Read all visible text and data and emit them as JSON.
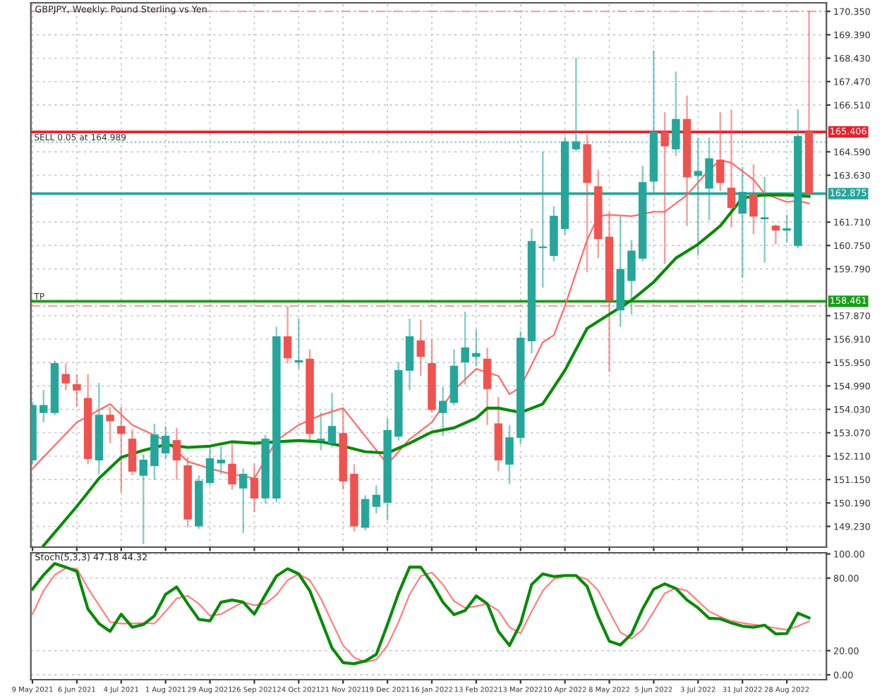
{
  "chart_data": [
    {
      "type": "candlestick",
      "title": "GBPJPY, Weekly: Pound Sterling vs Yen",
      "x": [
        "2021-05-09",
        "2021-05-16",
        "2021-05-23",
        "2021-05-30",
        "2021-06-06",
        "2021-06-13",
        "2021-06-20",
        "2021-06-27",
        "2021-07-04",
        "2021-07-11",
        "2021-07-18",
        "2021-07-25",
        "2021-08-01",
        "2021-08-08",
        "2021-08-15",
        "2021-08-22",
        "2021-08-29",
        "2021-09-05",
        "2021-09-12",
        "2021-09-19",
        "2021-09-26",
        "2021-10-03",
        "2021-10-10",
        "2021-10-17",
        "2021-10-24",
        "2021-10-31",
        "2021-11-07",
        "2021-11-14",
        "2021-11-21",
        "2021-11-28",
        "2021-12-05",
        "2021-12-12",
        "2021-12-19",
        "2021-12-26",
        "2022-01-02",
        "2022-01-09",
        "2022-01-16",
        "2022-01-23",
        "2022-01-30",
        "2022-02-06",
        "2022-02-13",
        "2022-02-20",
        "2022-02-27",
        "2022-03-06",
        "2022-03-13",
        "2022-03-20",
        "2022-03-27",
        "2022-04-03",
        "2022-04-10",
        "2022-04-17",
        "2022-04-24",
        "2022-05-01",
        "2022-05-08",
        "2022-05-15",
        "2022-05-22",
        "2022-05-29",
        "2022-06-05",
        "2022-06-12",
        "2022-06-19",
        "2022-06-26",
        "2022-07-03",
        "2022-07-10",
        "2022-07-17",
        "2022-07-24",
        "2022-07-31",
        "2022-08-07",
        "2022-08-14",
        "2022-08-21",
        "2022-08-28",
        "2022-09-04",
        "2022-09-11"
      ],
      "ohlc": [
        [
          151.95,
          154.36,
          151.78,
          154.19
        ],
        [
          153.9,
          154.82,
          153.5,
          154.19
        ],
        [
          153.9,
          156.03,
          153.79,
          155.91
        ],
        [
          155.46,
          155.91,
          154.82,
          155.11
        ],
        [
          155.05,
          155.46,
          154.13,
          154.82
        ],
        [
          154.48,
          155.46,
          151.78,
          152.01
        ],
        [
          151.95,
          155.11,
          151.37,
          153.79
        ],
        [
          153.79,
          154.13,
          152.64,
          153.56
        ],
        [
          153.33,
          154.13,
          150.63,
          153.04
        ],
        [
          152.81,
          153.21,
          151.32,
          151.49
        ],
        [
          151.32,
          152.18,
          148.5,
          151.95
        ],
        [
          151.72,
          153.44,
          151.14,
          152.98
        ],
        [
          152.24,
          153.33,
          152.0,
          152.93
        ],
        [
          152.75,
          153.27,
          151.14,
          151.95
        ],
        [
          151.72,
          152.06,
          149.19,
          149.53
        ],
        [
          149.25,
          151.32,
          149.13,
          151.09
        ],
        [
          151.03,
          152.47,
          150.91,
          152.01
        ],
        [
          151.83,
          152.52,
          151.37,
          151.95
        ],
        [
          151.78,
          152.64,
          150.74,
          150.97
        ],
        [
          150.8,
          151.6,
          148.96,
          151.37
        ],
        [
          151.2,
          151.78,
          149.82,
          150.39
        ],
        [
          150.39,
          152.98,
          150.16,
          152.81
        ],
        [
          150.39,
          157.41,
          150.22,
          157.01
        ],
        [
          157.01,
          158.27,
          155.91,
          156.14
        ],
        [
          155.97,
          157.75,
          155.69,
          156.03
        ],
        [
          156.09,
          156.49,
          152.75,
          153.04
        ],
        [
          152.75,
          153.9,
          152.35,
          152.81
        ],
        [
          152.64,
          154.71,
          152.47,
          153.33
        ],
        [
          153.04,
          154.08,
          150.74,
          151.09
        ],
        [
          151.37,
          151.78,
          149.02,
          149.25
        ],
        [
          149.19,
          150.51,
          149.07,
          150.34
        ],
        [
          150.05,
          150.91,
          149.76,
          150.51
        ],
        [
          150.22,
          153.67,
          149.48,
          153.16
        ],
        [
          152.93,
          155.97,
          152.75,
          155.63
        ],
        [
          155.63,
          157.75,
          154.82,
          157.01
        ],
        [
          156.84,
          157.7,
          155.4,
          156.2
        ],
        [
          155.91,
          156.89,
          153.9,
          154.02
        ],
        [
          153.9,
          154.94,
          152.93,
          154.36
        ],
        [
          154.31,
          156.49,
          154.19,
          155.8
        ],
        [
          155.97,
          158.04,
          155.05,
          156.55
        ],
        [
          156.2,
          157.3,
          155.8,
          156.32
        ],
        [
          156.09,
          156.55,
          153.39,
          154.88
        ],
        [
          153.44,
          154.54,
          151.49,
          151.95
        ],
        [
          151.78,
          153.39,
          150.97,
          152.87
        ],
        [
          152.87,
          157.24,
          152.6,
          156.95
        ],
        [
          156.84,
          161.44,
          156.32,
          160.92
        ],
        [
          160.66,
          164.6,
          159.02,
          160.69
        ],
        [
          160.34,
          162.36,
          160.1,
          161.95
        ],
        [
          161.44,
          165.2,
          161.2,
          165.0
        ],
        [
          164.71,
          168.45,
          164.6,
          165.0
        ],
        [
          164.89,
          165.29,
          159.65,
          163.33
        ],
        [
          163.16,
          163.85,
          160.23,
          161.03
        ],
        [
          161.09,
          162.13,
          155.57,
          158.5
        ],
        [
          158.1,
          161.95,
          157.41,
          159.77
        ],
        [
          159.31,
          160.98,
          157.93,
          160.52
        ],
        [
          160.23,
          164.02,
          160.1,
          163.33
        ],
        [
          163.39,
          168.74,
          162.87,
          165.4
        ],
        [
          165.4,
          166.21,
          160.0,
          164.83
        ],
        [
          164.71,
          167.88,
          164.43,
          165.92
        ],
        [
          165.92,
          166.9,
          161.55,
          163.56
        ],
        [
          163.62,
          165.17,
          160.34,
          163.79
        ],
        [
          163.1,
          165.17,
          161.78,
          164.31
        ],
        [
          164.25,
          166.21,
          162.99,
          163.33
        ],
        [
          163.1,
          166.33,
          161.49,
          162.3
        ],
        [
          162.07,
          163.97,
          159.42,
          162.93
        ],
        [
          162.82,
          164.08,
          161.21,
          161.95
        ],
        [
          161.84,
          163.56,
          160.05,
          161.89
        ],
        [
          161.55,
          161.61,
          160.8,
          161.38
        ],
        [
          161.38,
          162.01,
          160.86,
          161.44
        ],
        [
          160.75,
          166.33,
          160.63,
          165.23
        ],
        [
          165.4,
          170.35,
          162.85,
          162.88
        ]
      ],
      "colors": [
        "#26a69a",
        "#26a69a",
        "#26a69a",
        "#ef5350",
        "#ef5350",
        "#ef5350",
        "#26a69a",
        "#ef5350",
        "#ef5350",
        "#ef5350",
        "#26a69a",
        "#26a69a",
        "#26a69a",
        "#ef5350",
        "#ef5350",
        "#26a69a",
        "#26a69a",
        "#26a69a",
        "#ef5350",
        "#26a69a",
        "#ef5350",
        "#26a69a",
        "#26a69a",
        "#ef5350",
        "#26a69a",
        "#ef5350",
        "#26a69a",
        "#26a69a",
        "#ef5350",
        "#ef5350",
        "#26a69a",
        "#26a69a",
        "#26a69a",
        "#26a69a",
        "#26a69a",
        "#ef5350",
        "#ef5350",
        "#26a69a",
        "#26a69a",
        "#26a69a",
        "#26a69a",
        "#ef5350",
        "#ef5350",
        "#26a69a",
        "#26a69a",
        "#26a69a",
        "#26a69a",
        "#26a69a",
        "#26a69a",
        "#26a69a",
        "#ef5350",
        "#ef5350",
        "#ef5350",
        "#26a69a",
        "#26a69a",
        "#26a69a",
        "#26a69a",
        "#ef5350",
        "#26a69a",
        "#ef5350",
        "#26a69a",
        "#26a69a",
        "#ef5350",
        "#ef5350",
        "#26a69a",
        "#ef5350",
        "#26a69a",
        "#ef5350",
        "#26a69a",
        "#26a69a",
        "#ef5350"
      ],
      "series": [
        {
          "type": "line",
          "color": "#ff6b6b",
          "x": [
            "2021-05-09",
            "2021-06-06",
            "2021-06-27",
            "2021-07-11",
            "2021-08-01",
            "2021-08-15",
            "2021-08-29",
            "2021-09-12",
            "2021-09-26",
            "2021-10-10",
            "2021-10-24",
            "2021-11-07",
            "2021-11-21",
            "2021-12-05",
            "2021-12-19",
            "2022-01-02",
            "2022-01-16",
            "2022-01-30",
            "2022-02-13",
            "2022-02-27",
            "2022-03-06",
            "2022-03-13",
            "2022-03-27",
            "2022-04-03",
            "2022-04-10",
            "2022-04-24",
            "2022-05-01",
            "2022-05-08",
            "2022-05-22",
            "2022-06-05",
            "2022-06-12",
            "2022-06-26",
            "2022-07-10",
            "2022-07-17",
            "2022-07-24",
            "2022-08-07",
            "2022-08-14",
            "2022-08-28",
            "2022-09-04",
            "2022-09-11"
          ],
          "values": [
            151.6,
            153.5,
            154.25,
            153.39,
            152.75,
            151.89,
            151.6,
            151.37,
            151.2,
            152.75,
            153.39,
            153.79,
            154.08,
            152.93,
            151.78,
            152.81,
            153.5,
            154.82,
            155.69,
            155.4,
            154.65,
            154.94,
            156.78,
            157.07,
            158.27,
            160.98,
            161.95,
            162.01,
            161.95,
            162.13,
            162.13,
            162.82,
            163.85,
            164.25,
            164.14,
            163.45,
            162.87,
            162.53,
            162.59,
            162.47
          ]
        },
        {
          "type": "line",
          "color": "#0a8a0a",
          "x": [
            "2021-05-16",
            "2021-06-06",
            "2021-06-20",
            "2021-07-04",
            "2021-07-18",
            "2021-08-01",
            "2021-08-15",
            "2021-08-29",
            "2021-09-12",
            "2021-09-26",
            "2021-10-10",
            "2021-10-24",
            "2021-11-07",
            "2021-11-21",
            "2021-12-05",
            "2021-12-19",
            "2022-01-02",
            "2022-01-16",
            "2022-01-30",
            "2022-02-13",
            "2022-02-20",
            "2022-02-27",
            "2022-03-13",
            "2022-03-27",
            "2022-04-10",
            "2022-04-24",
            "2022-05-08",
            "2022-05-22",
            "2022-06-05",
            "2022-06-19",
            "2022-07-03",
            "2022-07-17",
            "2022-07-31",
            "2022-08-14",
            "2022-08-28",
            "2022-09-11"
          ],
          "values": [
            148.44,
            150.05,
            151.2,
            152.06,
            152.35,
            152.58,
            152.47,
            152.52,
            152.7,
            152.64,
            152.7,
            152.75,
            152.7,
            152.52,
            152.29,
            152.24,
            152.64,
            153.1,
            153.27,
            153.67,
            154.08,
            154.08,
            153.9,
            154.25,
            155.63,
            157.35,
            157.93,
            158.5,
            159.25,
            160.23,
            160.8,
            161.55,
            162.7,
            162.82,
            162.82,
            162.76
          ]
        }
      ],
      "ref_lines": [
        {
          "axis": "y",
          "value": 170.35,
          "label": null,
          "color": "#f4a3a3",
          "line_style": "dashed"
        },
        {
          "axis": "y",
          "value": 165.406,
          "label": "165.406",
          "color": "#e8202a",
          "line_style": "solid"
        },
        {
          "axis": "y",
          "value": 164.989,
          "label": "SELL 0.05 at 164.989",
          "color": "#7fc8c0",
          "line_style": "dotted"
        },
        {
          "axis": "y",
          "value": 162.875,
          "label": "162.875",
          "color": "#26a69a",
          "line_style": "solid"
        },
        {
          "axis": "y",
          "value": 158.461,
          "label": "158.461",
          "color": "#1a9c1a",
          "line_style": "solid"
        },
        {
          "axis": "y",
          "value": 158.27,
          "label": null,
          "color": "#f4a3a3",
          "line_style": "dashed"
        }
      ],
      "annotations": [
        {
          "text": "TP",
          "x": "2021-05-08",
          "y": 158.461
        }
      ],
      "xlim": [
        "2021-05-08",
        "2022-09-22"
      ],
      "xticks": [
        {
          "value": "2021-05-09",
          "label": null
        },
        {
          "value": "2021-06-06",
          "label": null
        },
        {
          "value": "2021-07-04",
          "label": null
        },
        {
          "value": "2021-08-01",
          "label": null
        },
        {
          "value": "2021-08-29",
          "label": null
        },
        {
          "value": "2021-09-26",
          "label": null
        },
        {
          "value": "2021-10-24",
          "label": null
        },
        {
          "value": "2021-11-21",
          "label": null
        },
        {
          "value": "2021-12-19",
          "label": null
        },
        {
          "value": "2022-01-16",
          "label": null
        },
        {
          "value": "2022-02-13",
          "label": null
        },
        {
          "value": "2022-03-13",
          "label": null
        },
        {
          "value": "2022-04-10",
          "label": null
        },
        {
          "value": "2022-05-08",
          "label": null
        },
        {
          "value": "2022-06-05",
          "label": null
        },
        {
          "value": "2022-07-03",
          "label": null
        },
        {
          "value": "2022-07-31",
          "label": null
        },
        {
          "value": "2022-08-28",
          "label": null
        }
      ],
      "ylim": [
        148.38,
        170.7
      ],
      "yticks": [
        {
          "value": 170.35,
          "label": "170.350"
        },
        {
          "value": 169.39,
          "label": "169.390"
        },
        {
          "value": 168.43,
          "label": "168.430"
        },
        {
          "value": 167.47,
          "label": "167.470"
        },
        {
          "value": 166.51,
          "label": "166.510"
        },
        {
          "value": 164.59,
          "label": "164.590"
        },
        {
          "value": 163.63,
          "label": "163.630"
        },
        {
          "value": 161.71,
          "label": "161.710"
        },
        {
          "value": 160.75,
          "label": "160.750"
        },
        {
          "value": 159.79,
          "label": "159.790"
        },
        {
          "value": 157.87,
          "label": "157.870"
        },
        {
          "value": 156.91,
          "label": "156.910"
        },
        {
          "value": 155.95,
          "label": "155.950"
        },
        {
          "value": 154.99,
          "label": "154.990"
        },
        {
          "value": 154.03,
          "label": "154.030"
        },
        {
          "value": 153.07,
          "label": "153.070"
        },
        {
          "value": 152.11,
          "label": "152.110"
        },
        {
          "value": 151.15,
          "label": "151.150"
        },
        {
          "value": 150.19,
          "label": "150.190"
        },
        {
          "value": 149.23,
          "label": "149.230"
        }
      ],
      "grid": true,
      "tick_labels": "y"
    },
    {
      "type": "line",
      "title": "Stoch(5,3,3) 47.18 44.32",
      "x": [
        "2021-05-09",
        "2021-05-16",
        "2021-05-23",
        "2021-05-30",
        "2021-06-06",
        "2021-06-13",
        "2021-06-20",
        "2021-06-27",
        "2021-07-04",
        "2021-07-11",
        "2021-07-18",
        "2021-07-25",
        "2021-08-01",
        "2021-08-08",
        "2021-08-15",
        "2021-08-22",
        "2021-08-29",
        "2021-09-05",
        "2021-09-12",
        "2021-09-19",
        "2021-09-26",
        "2021-10-03",
        "2021-10-10",
        "2021-10-17",
        "2021-10-24",
        "2021-10-31",
        "2021-11-07",
        "2021-11-14",
        "2021-11-21",
        "2021-11-28",
        "2021-12-05",
        "2021-12-12",
        "2021-12-19",
        "2021-12-26",
        "2022-01-02",
        "2022-01-09",
        "2022-01-16",
        "2022-01-23",
        "2022-01-30",
        "2022-02-06",
        "2022-02-13",
        "2022-02-20",
        "2022-02-27",
        "2022-03-06",
        "2022-03-13",
        "2022-03-20",
        "2022-03-27",
        "2022-04-03",
        "2022-04-10",
        "2022-04-17",
        "2022-04-24",
        "2022-05-01",
        "2022-05-08",
        "2022-05-15",
        "2022-05-22",
        "2022-05-29",
        "2022-06-05",
        "2022-06-12",
        "2022-06-19",
        "2022-06-26",
        "2022-07-03",
        "2022-07-10",
        "2022-07-17",
        "2022-07-24",
        "2022-07-31",
        "2022-08-07",
        "2022-08-14",
        "2022-08-21",
        "2022-08-28",
        "2022-09-04",
        "2022-09-11"
      ],
      "series": [
        {
          "color": "#ff7f7f",
          "values": [
            50.2,
            69.6,
            82.6,
            88.2,
            87.8,
            71.8,
            57.6,
            43.7,
            42.4,
            42.4,
            42.9,
            42.4,
            52.4,
            63.2,
            65.3,
            58.8,
            48.9,
            50.2,
            55.4,
            60.1,
            57.6,
            58.8,
            66.2,
            78.3,
            83.5,
            78.3,
            63.2,
            43.7,
            24.3,
            14.4,
            10.5,
            12.7,
            24.3,
            43.7,
            66.6,
            81.7,
            84.7,
            74.8,
            61.0,
            55.4,
            56.7,
            58.8,
            53.2,
            39.4,
            34.2,
            52.4,
            69.6,
            79.1,
            81.7,
            81.7,
            79.1,
            69.6,
            52.4,
            35.1,
            29.9,
            37.3,
            52.4,
            67.5,
            71.8,
            69.6,
            61.0,
            52.4,
            48.1,
            44.6,
            42.9,
            41.6,
            40.3,
            38.6,
            37.3,
            40.3,
            44.32
          ]
        },
        {
          "color": "#0a8a0a",
          "values": [
            70.9,
            82.6,
            92.1,
            89.1,
            85.6,
            54.5,
            42.4,
            36.0,
            50.2,
            39.4,
            41.6,
            48.9,
            66.6,
            72.7,
            58.8,
            45.9,
            44.6,
            60.1,
            61.9,
            60.1,
            50.2,
            66.2,
            81.7,
            87.8,
            83.5,
            69.6,
            45.9,
            22.2,
            10.1,
            9.2,
            11.4,
            17.0,
            41.6,
            67.5,
            89.1,
            89.1,
            76.1,
            60.1,
            49.8,
            53.2,
            65.3,
            58.8,
            36.0,
            24.3,
            42.4,
            74.8,
            83.5,
            81.3,
            82.2,
            82.2,
            73.1,
            48.1,
            27.8,
            24.7,
            33.8,
            54.5,
            70.9,
            75.3,
            71.4,
            61.9,
            55.4,
            46.8,
            46.3,
            42.9,
            40.3,
            39.4,
            41.1,
            33.8,
            34.2,
            51.1,
            47.18
          ]
        }
      ],
      "xlim": [
        "2021-05-08",
        "2022-09-22"
      ],
      "xticks": [
        {
          "value": "2021-05-09",
          "label": "9 May 2021"
        },
        {
          "value": "2021-06-06",
          "label": "6 Jun 2021"
        },
        {
          "value": "2021-07-04",
          "label": "4 Jul 2021"
        },
        {
          "value": "2021-08-01",
          "label": "1 Aug 2021"
        },
        {
          "value": "2021-08-29",
          "label": "29 Aug 2021"
        },
        {
          "value": "2021-09-26",
          "label": "26 Sep 2021"
        },
        {
          "value": "2021-10-24",
          "label": "24 Oct 2021"
        },
        {
          "value": "2021-11-21",
          "label": "21 Nov 2021"
        },
        {
          "value": "2021-12-19",
          "label": "19 Dec 2021"
        },
        {
          "value": "2022-01-16",
          "label": "16 Jan 2022"
        },
        {
          "value": "2022-02-13",
          "label": "13 Feb 2022"
        },
        {
          "value": "2022-03-13",
          "label": "13 Mar 2022"
        },
        {
          "value": "2022-04-10",
          "label": "10 Apr 2022"
        },
        {
          "value": "2022-05-08",
          "label": "8 May 2022"
        },
        {
          "value": "2022-06-05",
          "label": "5 Jun 2022"
        },
        {
          "value": "2022-07-03",
          "label": "3 Jul 2022"
        },
        {
          "value": "2022-07-31",
          "label": "31 Jul 2022"
        },
        {
          "value": "2022-08-28",
          "label": "28 Aug 2022"
        }
      ],
      "ylim": [
        -4,
        101
      ],
      "yticks": [
        {
          "value": 0,
          "label": "0.00"
        },
        {
          "value": 20,
          "label": "20.00"
        },
        {
          "value": 80,
          "label": "80.00"
        },
        {
          "value": 100,
          "label": "100.00"
        }
      ],
      "grid": "y"
    }
  ]
}
